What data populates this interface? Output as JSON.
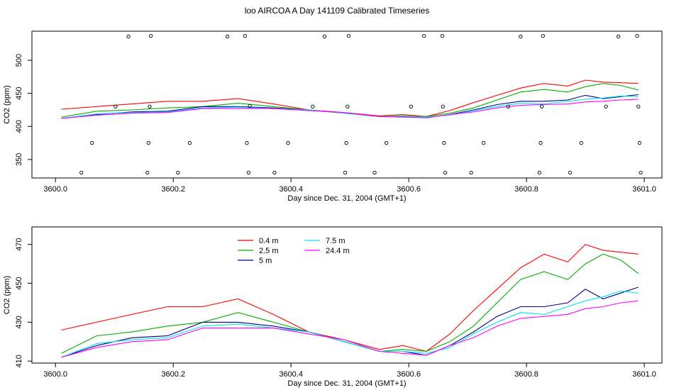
{
  "page": {
    "title": "loo AIRCOA A  Day 141109  Calibrated Timeseries"
  },
  "colors": {
    "0.4 m": "#ff0000",
    "2.5 m": "#00b000",
    "5 m": "#00008b",
    "7.5 m": "#00e5ee",
    "24.4 m": "#ff00ff"
  },
  "chart_data": [
    {
      "type": "line",
      "title": "",
      "xlabel": "Day since Dec. 31, 2004 (GMT+1)",
      "ylabel": "CO2 (ppm)",
      "xlim": [
        3599.96,
        3601.03
      ],
      "ylim": [
        322,
        544
      ],
      "xticks": [
        3600.0,
        3600.2,
        3600.4,
        3600.6,
        3600.8,
        3601.0
      ],
      "xtick_labels": [
        "3600.0",
        "3600.2",
        "3600.4",
        "3600.6",
        "3600.8",
        "3601.0"
      ],
      "yticks": [
        350,
        400,
        450,
        500
      ],
      "ytick_labels": [
        "350",
        "400",
        "450",
        "500"
      ],
      "grid": false,
      "markers": {
        "style": "open-circle",
        "points": [
          [
            3600.044,
            330
          ],
          [
            3600.062,
            375
          ],
          [
            3600.102,
            430
          ],
          [
            3600.124,
            536
          ],
          [
            3600.156,
            330
          ],
          [
            3600.158,
            375
          ],
          [
            3600.16,
            430
          ],
          [
            3600.162,
            537
          ],
          [
            3600.208,
            330
          ],
          [
            3600.228,
            375
          ],
          [
            3600.292,
            536
          ],
          [
            3600.322,
            537
          ],
          [
            3600.325,
            375
          ],
          [
            3600.328,
            330
          ],
          [
            3600.33,
            431
          ],
          [
            3600.372,
            330
          ],
          [
            3600.395,
            375
          ],
          [
            3600.437,
            430
          ],
          [
            3600.457,
            536
          ],
          [
            3600.492,
            330
          ],
          [
            3600.494,
            375
          ],
          [
            3600.496,
            430
          ],
          [
            3600.498,
            537
          ],
          [
            3600.542,
            330
          ],
          [
            3600.562,
            375
          ],
          [
            3600.604,
            430
          ],
          [
            3600.626,
            537
          ],
          [
            3600.657,
            537
          ],
          [
            3600.658,
            430
          ],
          [
            3600.66,
            375
          ],
          [
            3600.662,
            330
          ],
          [
            3600.706,
            330
          ],
          [
            3600.727,
            375
          ],
          [
            3600.769,
            430
          ],
          [
            3600.79,
            536
          ],
          [
            3600.822,
            330
          ],
          [
            3600.824,
            375
          ],
          [
            3600.826,
            430
          ],
          [
            3600.828,
            537
          ],
          [
            3600.874,
            330
          ],
          [
            3600.893,
            375
          ],
          [
            3600.935,
            430
          ],
          [
            3600.956,
            536
          ],
          [
            3600.988,
            537
          ],
          [
            3600.99,
            430
          ],
          [
            3600.992,
            375
          ],
          [
            3600.994,
            330
          ]
        ]
      },
      "series_ref": "profiles"
    },
    {
      "type": "line",
      "title": "",
      "xlabel": "Day since Dec. 31, 2004 (GMT+1)",
      "ylabel": "CO2 (ppm)",
      "xlim": [
        3599.96,
        3601.03
      ],
      "ylim": [
        409,
        479
      ],
      "xticks": [
        3600.0,
        3600.2,
        3600.4,
        3600.6,
        3600.8,
        3601.0
      ],
      "xtick_labels": [
        "3600.0",
        "3600.2",
        "3600.4",
        "3600.6",
        "3600.8",
        "3601.0"
      ],
      "yticks": [
        410,
        430,
        450,
        470
      ],
      "ytick_labels": [
        "410",
        "430",
        "450",
        "470"
      ],
      "grid": false,
      "legend": {
        "placement": "top-center",
        "entries": [
          "0.4 m",
          "2.5 m",
          "5 m",
          "7.5 m",
          "24.4 m"
        ]
      },
      "series_ref": "profiles"
    }
  ],
  "profiles": {
    "x": [
      3600.01,
      3600.07,
      3600.13,
      3600.19,
      3600.25,
      3600.31,
      3600.37,
      3600.43,
      3600.49,
      3600.55,
      3600.59,
      3600.63,
      3600.67,
      3600.71,
      3600.75,
      3600.79,
      3600.83,
      3600.87,
      3600.9,
      3600.93,
      3600.96,
      3600.99
    ],
    "series": [
      {
        "name": "0.4 m",
        "values": [
          426,
          430,
          434,
          438,
          438,
          442,
          434,
          425,
          421,
          416,
          418,
          415,
          424,
          436,
          447,
          458,
          465,
          461,
          470,
          467,
          466,
          465
        ]
      },
      {
        "name": "2.5 m",
        "values": [
          414,
          423,
          425,
          428,
          430,
          435,
          430,
          425,
          420,
          415,
          416,
          415,
          420,
          428,
          440,
          452,
          456,
          452,
          460,
          465,
          462,
          455
        ]
      },
      {
        "name": "5 m",
        "values": [
          412,
          418,
          422,
          423,
          430,
          430,
          428,
          425,
          420,
          415,
          415,
          413,
          418,
          425,
          433,
          438,
          438,
          440,
          447,
          442,
          445,
          448
        ]
      },
      {
        "name": "7.5 m",
        "values": [
          412,
          419,
          421,
          422,
          428,
          429,
          427,
          425,
          420,
          415,
          415,
          414,
          417,
          424,
          430,
          435,
          434,
          438,
          441,
          443,
          446,
          445
        ]
      },
      {
        "name": "24.4 m",
        "values": [
          412,
          417,
          420,
          421,
          427,
          427,
          427,
          424,
          421,
          415,
          414,
          413,
          418,
          422,
          428,
          432,
          433,
          434,
          437,
          438,
          440,
          441
        ]
      }
    ]
  }
}
